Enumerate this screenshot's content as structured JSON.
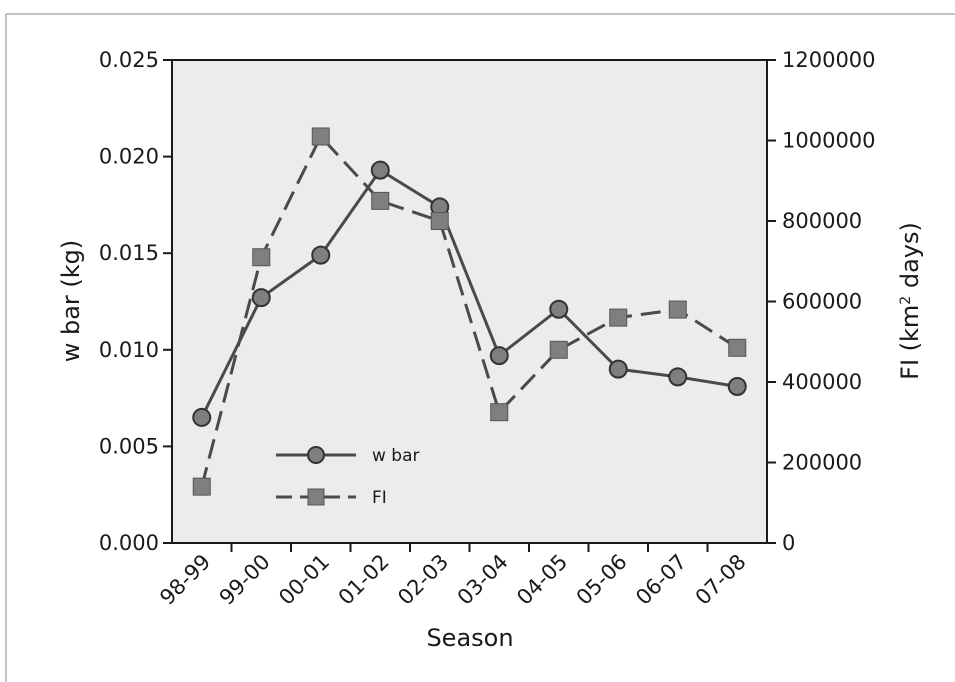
{
  "chart_data": {
    "type": "line",
    "xlabel": "Season",
    "categories": [
      "98-99",
      "99-00",
      "00-01",
      "01-02",
      "02-03",
      "03-04",
      "04-05",
      "05-06",
      "06-07",
      "07-08"
    ],
    "y_left": {
      "label": "w bar (kg)",
      "ylim": [
        0,
        0.025
      ],
      "ticks": [
        "0.000",
        "0.005",
        "0.010",
        "0.015",
        "0.020",
        "0.025"
      ]
    },
    "y_right": {
      "label_prefix": "FI (km",
      "label_sup": "2",
      "label_suffix": " days)",
      "ylim": [
        0,
        1200000
      ],
      "ticks": [
        "0",
        "200000",
        "400000",
        "600000",
        "800000",
        "1000000",
        "1200000"
      ]
    },
    "series": [
      {
        "name": "w bar",
        "axis": "left",
        "style": "solid",
        "marker": "circle",
        "values": [
          0.0065,
          0.0127,
          0.0149,
          0.0193,
          0.0174,
          0.0097,
          0.0121,
          0.009,
          0.0086,
          0.0081
        ]
      },
      {
        "name": "FI",
        "axis": "right",
        "style": "dashed",
        "marker": "square",
        "values": [
          140000,
          710000,
          1010000,
          850000,
          800000,
          325000,
          480000,
          560000,
          580000,
          485000
        ]
      }
    ],
    "legend": {
      "position": "bottom-left inside plot"
    },
    "colors": {
      "plot_bg": "#ececec",
      "line": "#4a4a4a",
      "marker_fill": "#7f7f7f"
    },
    "grid": false
  }
}
